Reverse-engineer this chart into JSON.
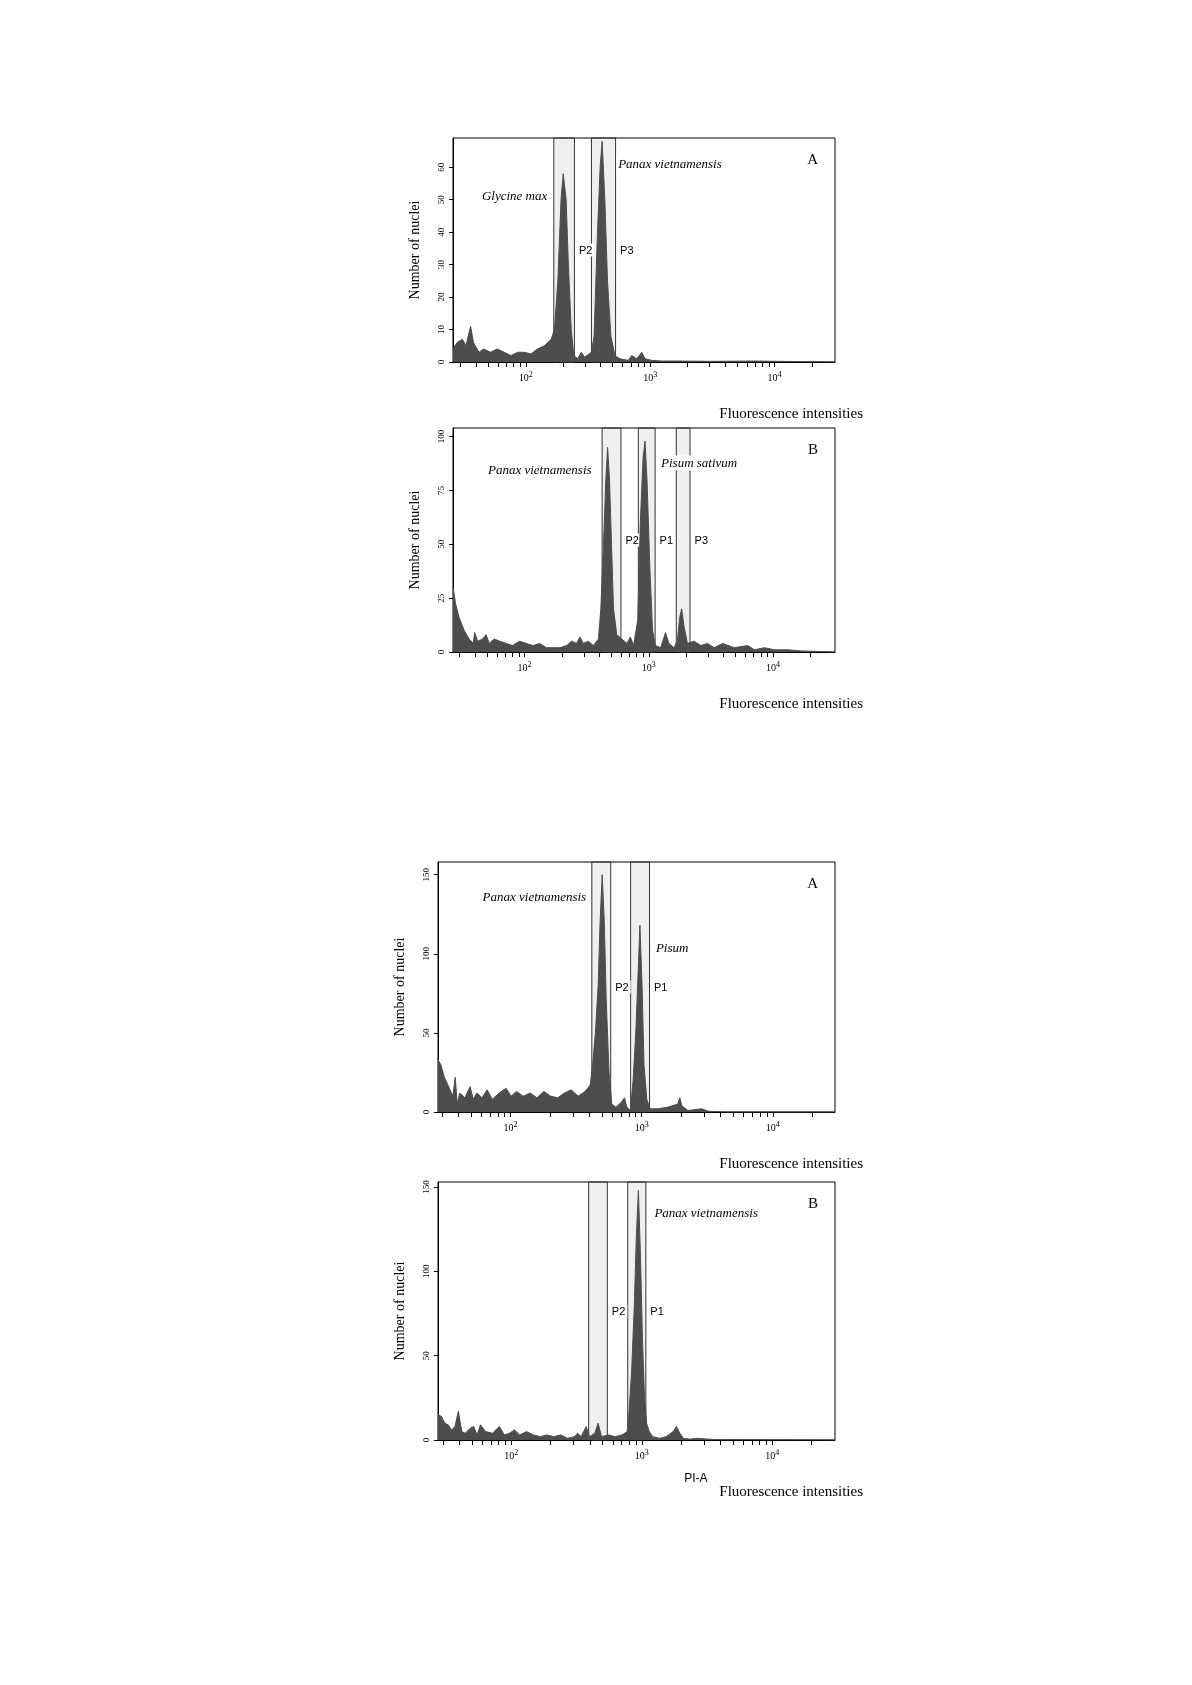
{
  "chart_data": [
    {
      "type": "area",
      "title": "A",
      "xlabel": "Fluorescence intensities",
      "ylabel": "Number of nuclei",
      "log": "x",
      "marker": "none",
      "color": "#4d4d4d",
      "x": [
        26,
        28,
        31,
        33,
        36,
        38,
        42,
        46,
        52,
        59,
        67,
        76,
        86,
        97,
        110,
        124,
        141,
        160,
        170,
        181,
        192,
        200,
        211,
        220,
        232,
        243,
        262,
        279,
        297,
        337,
        354,
        377,
        396,
        411,
        432,
        454,
        483,
        520,
        571,
        667,
        710,
        780,
        855,
        910,
        1030,
        1240,
        1700,
        3160,
        6670,
        11000,
        30600
      ],
      "values": [
        4,
        6,
        7,
        5,
        11,
        6,
        3,
        4,
        3,
        4,
        3,
        2,
        3,
        3,
        2.5,
        4,
        5,
        7,
        10,
        25,
        50,
        58,
        50,
        30,
        10,
        2,
        1,
        3,
        1.5,
        3,
        8,
        40,
        60,
        68,
        50,
        25,
        8,
        2,
        1,
        0.5,
        2,
        1,
        3,
        1,
        0.5,
        0.3,
        0.3,
        0.2,
        0.3,
        0.2,
        0
      ],
      "xlim": [
        26,
        30600
      ],
      "ylim": [
        0,
        69
      ],
      "yticks": [
        0,
        10,
        20,
        30,
        40,
        50,
        60
      ],
      "xticks": [
        {
          "value": 30,
          "label": null
        },
        {
          "value": 40,
          "label": null
        },
        {
          "value": 50,
          "label": null
        },
        {
          "value": 60,
          "label": null
        },
        {
          "value": 70,
          "label": null
        },
        {
          "value": 80,
          "label": null
        },
        {
          "value": 90,
          "label": null
        },
        {
          "value": 100,
          "label": "10$^{2}$"
        },
        {
          "value": 200,
          "label": null
        },
        {
          "value": 300,
          "label": null
        },
        {
          "value": 400,
          "label": null
        },
        {
          "value": 500,
          "label": null
        },
        {
          "value": 600,
          "label": null
        },
        {
          "value": 700,
          "label": null
        },
        {
          "value": 800,
          "label": null
        },
        {
          "value": 900,
          "label": null
        },
        {
          "value": 1000,
          "label": "10$^{3}$"
        },
        {
          "value": 2000,
          "label": null
        },
        {
          "value": 3000,
          "label": null
        },
        {
          "value": 4000,
          "label": null
        },
        {
          "value": 5000,
          "label": null
        },
        {
          "value": 6000,
          "label": null
        },
        {
          "value": 7000,
          "label": null
        },
        {
          "value": 8000,
          "label": null
        },
        {
          "value": 9000,
          "label": null
        },
        {
          "value": 10000,
          "label": "10$^{4}$"
        },
        {
          "value": 20000,
          "label": null
        }
      ],
      "bands": [
        {
          "axis": "x",
          "from": 168,
          "to": 246,
          "label": "P2"
        },
        {
          "axis": "x",
          "from": 337,
          "to": 527,
          "label": "P3"
        }
      ],
      "annotations": [
        {
          "text": "Glycine max",
          "x": 200,
          "y": 58
        },
        {
          "text": "Panax vietnamensis",
          "x": 411,
          "y": 68
        }
      ]
    },
    {
      "type": "area",
      "title": "B",
      "xlabel": "Fluorescence intensities",
      "ylabel": "Number of nuclei",
      "log": "x",
      "marker": "none",
      "color": "#4d4d4d",
      "x": [
        26.5,
        27.9,
        29.7,
        32.6,
        35.8,
        38.6,
        39.6,
        41.9,
        45.9,
        48.9,
        52,
        57,
        63,
        71,
        80,
        91,
        103,
        117,
        132,
        150,
        170,
        192,
        218,
        239,
        262,
        279,
        297,
        326,
        358,
        393,
        411,
        432,
        451,
        466,
        483,
        501,
        520,
        553,
        608,
        667,
        710,
        755,
        815,
        855,
        899,
        933,
        968,
        1019,
        1072,
        1132,
        1245,
        1365,
        1452,
        1596,
        1698,
        1774,
        1841,
        1923,
        2046,
        2317,
        2624,
        2972,
        3365,
        3936,
        4887,
        6268,
        7099,
        8551,
        10320,
        13240,
        16980,
        31620
      ],
      "values": [
        30,
        22,
        16,
        10,
        6,
        4,
        9,
        5,
        6,
        8,
        4,
        6,
        5,
        4,
        3,
        5,
        4,
        3,
        4,
        2,
        2,
        2,
        3,
        5,
        4,
        7,
        4,
        5,
        3,
        6,
        20,
        50,
        80,
        95,
        80,
        50,
        20,
        8,
        6,
        4,
        7,
        3,
        15,
        60,
        90,
        98,
        80,
        40,
        10,
        3,
        2,
        9,
        4,
        2,
        5,
        16,
        20,
        12,
        4,
        5,
        3,
        4,
        2,
        4,
        2,
        3,
        1,
        2,
        1,
        1,
        0.5,
        0
      ],
      "xlim": [
        26.5,
        31620
      ],
      "ylim": [
        0,
        104
      ],
      "yticks": [
        0,
        25,
        50,
        75,
        100
      ],
      "xticks": [
        {
          "value": 30,
          "label": null
        },
        {
          "value": 40,
          "label": null
        },
        {
          "value": 50,
          "label": null
        },
        {
          "value": 60,
          "label": null
        },
        {
          "value": 70,
          "label": null
        },
        {
          "value": 80,
          "label": null
        },
        {
          "value": 90,
          "label": null
        },
        {
          "value": 100,
          "label": "10$^{2}$"
        },
        {
          "value": 200,
          "label": null
        },
        {
          "value": 300,
          "label": null
        },
        {
          "value": 400,
          "label": null
        },
        {
          "value": 500,
          "label": null
        },
        {
          "value": 600,
          "label": null
        },
        {
          "value": 700,
          "label": null
        },
        {
          "value": 800,
          "label": null
        },
        {
          "value": 900,
          "label": null
        },
        {
          "value": 1000,
          "label": "10$^{3}$"
        },
        {
          "value": 2000,
          "label": null
        },
        {
          "value": 3000,
          "label": null
        },
        {
          "value": 4000,
          "label": null
        },
        {
          "value": 5000,
          "label": null
        },
        {
          "value": 6000,
          "label": null
        },
        {
          "value": 7000,
          "label": null
        },
        {
          "value": 8000,
          "label": null
        },
        {
          "value": 9000,
          "label": null
        },
        {
          "value": 10000,
          "label": "10$^{4}$"
        },
        {
          "value": 20000,
          "label": null
        }
      ],
      "bands": [
        {
          "axis": "x",
          "from": 421,
          "to": 597,
          "label": "P2"
        },
        {
          "axis": "x",
          "from": 824,
          "to": 1125,
          "label": "P1"
        },
        {
          "axis": "x",
          "from": 1666,
          "to": 2150,
          "label": "P3"
        }
      ],
      "annotations": [
        {
          "text": "Panax vietnamensis",
          "x": 466,
          "y": 95
        },
        {
          "text": "Pisum sativum",
          "x": 933,
          "y": 98
        }
      ]
    },
    {
      "type": "area",
      "title": "A",
      "xlabel": "Fluorescence intensities",
      "ylabel": "Number of nuclei",
      "log": "x",
      "marker": "none",
      "color": "#4d4d4d",
      "x": [
        28,
        29.4,
        31.3,
        34.2,
        36.3,
        37.9,
        39.3,
        41,
        44.9,
        49.1,
        52.1,
        55.3,
        60.6,
        66.4,
        72.7,
        82,
        92.5,
        101,
        111,
        125,
        141,
        159,
        180,
        202,
        229,
        258,
        290,
        328,
        370,
        405,
        423,
        444,
        466,
        482,
        500,
        519,
        537,
        564,
        592,
        637,
        697,
        740,
        771,
        820,
        861,
        902,
        942,
        970,
        1007,
        1042,
        1094,
        1161,
        1312,
        1571,
        1884,
        1954,
        2023,
        2254,
        2871,
        3236,
        4375,
        29800
      ],
      "values": [
        33,
        30,
        22,
        15,
        10,
        22,
        5,
        12,
        9,
        16,
        8,
        12,
        9,
        14,
        8,
        12,
        15,
        10,
        13,
        10,
        12,
        9,
        13,
        10,
        9,
        12,
        14,
        10,
        13,
        17,
        30,
        50,
        80,
        120,
        150,
        120,
        70,
        25,
        5,
        3,
        6,
        9,
        3,
        1,
        20,
        50,
        90,
        118,
        80,
        30,
        8,
        2,
        2,
        3,
        5,
        9,
        4,
        1,
        2,
        0.5,
        0,
        0
      ],
      "xlim": [
        28,
        29800
      ],
      "ylim": [
        0,
        158
      ],
      "yticks": [
        0,
        50,
        100,
        150
      ],
      "xticks": [
        {
          "value": 30,
          "label": null
        },
        {
          "value": 40,
          "label": null
        },
        {
          "value": 50,
          "label": null
        },
        {
          "value": 60,
          "label": null
        },
        {
          "value": 70,
          "label": null
        },
        {
          "value": 80,
          "label": null
        },
        {
          "value": 90,
          "label": null
        },
        {
          "value": 100,
          "label": "10$^{2}$"
        },
        {
          "value": 200,
          "label": null
        },
        {
          "value": 300,
          "label": null
        },
        {
          "value": 400,
          "label": null
        },
        {
          "value": 500,
          "label": null
        },
        {
          "value": 600,
          "label": null
        },
        {
          "value": 700,
          "label": null
        },
        {
          "value": 800,
          "label": null
        },
        {
          "value": 900,
          "label": null
        },
        {
          "value": 1000,
          "label": "10$^{3}$"
        },
        {
          "value": 2000,
          "label": null
        },
        {
          "value": 3000,
          "label": null
        },
        {
          "value": 4000,
          "label": null
        },
        {
          "value": 5000,
          "label": null
        },
        {
          "value": 6000,
          "label": null
        },
        {
          "value": 7000,
          "label": null
        },
        {
          "value": 8000,
          "label": null
        },
        {
          "value": 9000,
          "label": null
        },
        {
          "value": 10000,
          "label": "10$^{4}$"
        },
        {
          "value": 20000,
          "label": null
        }
      ],
      "bands": [
        {
          "axis": "x",
          "from": 417,
          "to": 581,
          "label": "P2"
        },
        {
          "axis": "x",
          "from": 824,
          "to": 1148,
          "label": "P1"
        }
      ],
      "annotations": [
        {
          "text": "Panax vietnamensis",
          "x": 500,
          "y": 150
        },
        {
          "text": "Pisum",
          "x": 970,
          "y": 118
        }
      ]
    },
    {
      "type": "area",
      "title": "B",
      "xlabel": "Fluorescence intensities",
      "ylabel": "Number of nuclei",
      "log": "x",
      "marker": "none",
      "color": "#4d4d4d",
      "x": [
        27.5,
        29.2,
        31,
        32.9,
        34.9,
        37.1,
        39.4,
        41.8,
        44.4,
        48.6,
        51.6,
        54.8,
        58.2,
        63.7,
        71.8,
        81.1,
        88.7,
        97,
        106,
        116,
        131,
        148,
        167,
        188,
        212,
        239,
        270,
        304,
        323,
        343,
        375,
        399,
        437,
        463,
        492,
        555,
        625,
        706,
        773,
        796,
        835,
        877,
        908,
        942,
        977,
        1012,
        1050,
        1089,
        1141,
        1213,
        1368,
        1542,
        1738,
        1845,
        1960,
        2084,
        2349,
        2649,
        3580,
        4831,
        30200
      ],
      "values": [
        15,
        14,
        10,
        9,
        6,
        8,
        17,
        5,
        4,
        7,
        8,
        3,
        9,
        5,
        4,
        8,
        3,
        4,
        6,
        3,
        5,
        3,
        2,
        3,
        2,
        3,
        1,
        2,
        4,
        2,
        8,
        2,
        4,
        10,
        2,
        3,
        2,
        3,
        5,
        15,
        40,
        80,
        120,
        148,
        110,
        60,
        25,
        10,
        5,
        2,
        1,
        2,
        5,
        8,
        4,
        1,
        0.5,
        1,
        0.3,
        0.3,
        0
      ],
      "xlim": [
        27.5,
        30200
      ],
      "ylim": [
        0,
        153
      ],
      "yticks": [
        0,
        50,
        100,
        150
      ],
      "xticks": [
        {
          "value": 30,
          "label": null
        },
        {
          "value": 40,
          "label": null
        },
        {
          "value": 50,
          "label": null
        },
        {
          "value": 60,
          "label": null
        },
        {
          "value": 70,
          "label": null
        },
        {
          "value": 80,
          "label": null
        },
        {
          "value": 90,
          "label": null
        },
        {
          "value": 100,
          "label": "10$^{2}$"
        },
        {
          "value": 200,
          "label": null
        },
        {
          "value": 300,
          "label": null
        },
        {
          "value": 400,
          "label": null
        },
        {
          "value": 500,
          "label": null
        },
        {
          "value": 600,
          "label": null
        },
        {
          "value": 700,
          "label": null
        },
        {
          "value": 800,
          "label": null
        },
        {
          "value": 900,
          "label": null
        },
        {
          "value": 1000,
          "label": "10$^{3}$"
        },
        {
          "value": 2000,
          "label": null
        },
        {
          "value": 3000,
          "label": null
        },
        {
          "value": 4000,
          "label": null
        },
        {
          "value": 5000,
          "label": null
        },
        {
          "value": 6000,
          "label": null
        },
        {
          "value": 7000,
          "label": null
        },
        {
          "value": 8000,
          "label": null
        },
        {
          "value": 9000,
          "label": null
        },
        {
          "value": 10000,
          "label": "10$^{4}$"
        },
        {
          "value": 20000,
          "label": null
        }
      ],
      "bands": [
        {
          "axis": "x",
          "from": 392,
          "to": 545,
          "label": "P2"
        },
        {
          "axis": "x",
          "from": 781,
          "to": 1075,
          "label": "P1"
        }
      ],
      "annotations": [
        {
          "text": "Panax vietnamensis",
          "x": 942,
          "y": 148
        },
        "PI-A"
      ]
    }
  ]
}
